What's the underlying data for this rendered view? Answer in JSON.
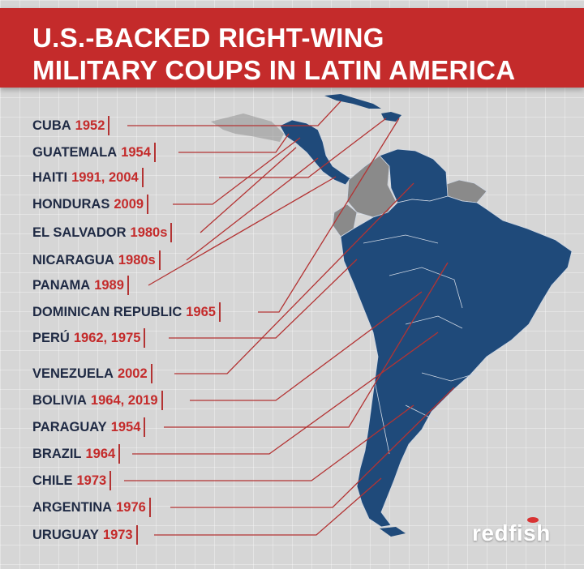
{
  "header": {
    "title_line1": "U.S.-BACKED RIGHT-WING",
    "title_line2": "MILITARY COUPS IN LATIN AMERICA"
  },
  "coups": [
    {
      "country": "CUBA",
      "years": "1952"
    },
    {
      "country": "GUATEMALA",
      "years": "1954"
    },
    {
      "country": "HAITI",
      "years": "1991, 2004"
    },
    {
      "country": "HONDURAS",
      "years": "2009"
    },
    {
      "country": "EL SALVADOR",
      "years": "1980s"
    },
    {
      "country": "NICARAGUA",
      "years": "1980s"
    },
    {
      "country": "PANAMA",
      "years": "1989"
    },
    {
      "country": "DOMINICAN REPUBLIC",
      "years": "1965"
    },
    {
      "country": "PERÚ",
      "years": "1962, 1975"
    },
    {
      "country": "VENEZUELA",
      "years": "2002"
    },
    {
      "country": "BOLIVIA",
      "years": "1964, 2019"
    },
    {
      "country": "PARAGUAY",
      "years": "1954"
    },
    {
      "country": "BRAZIL",
      "years": "1964"
    },
    {
      "country": "CHILE",
      "years": "1973"
    },
    {
      "country": "ARGENTINA",
      "years": "1976"
    },
    {
      "country": "URUGUAY",
      "years": "1973"
    }
  ],
  "logo": {
    "text": "redfish"
  },
  "colors": {
    "banner": "#c42b2b",
    "coup_country_fill": "#1f4a7a",
    "other_country_fill": "#8a8a8a",
    "label_text": "#1f2a44",
    "year_text": "#c42b2b",
    "leader_line": "#b33333"
  }
}
